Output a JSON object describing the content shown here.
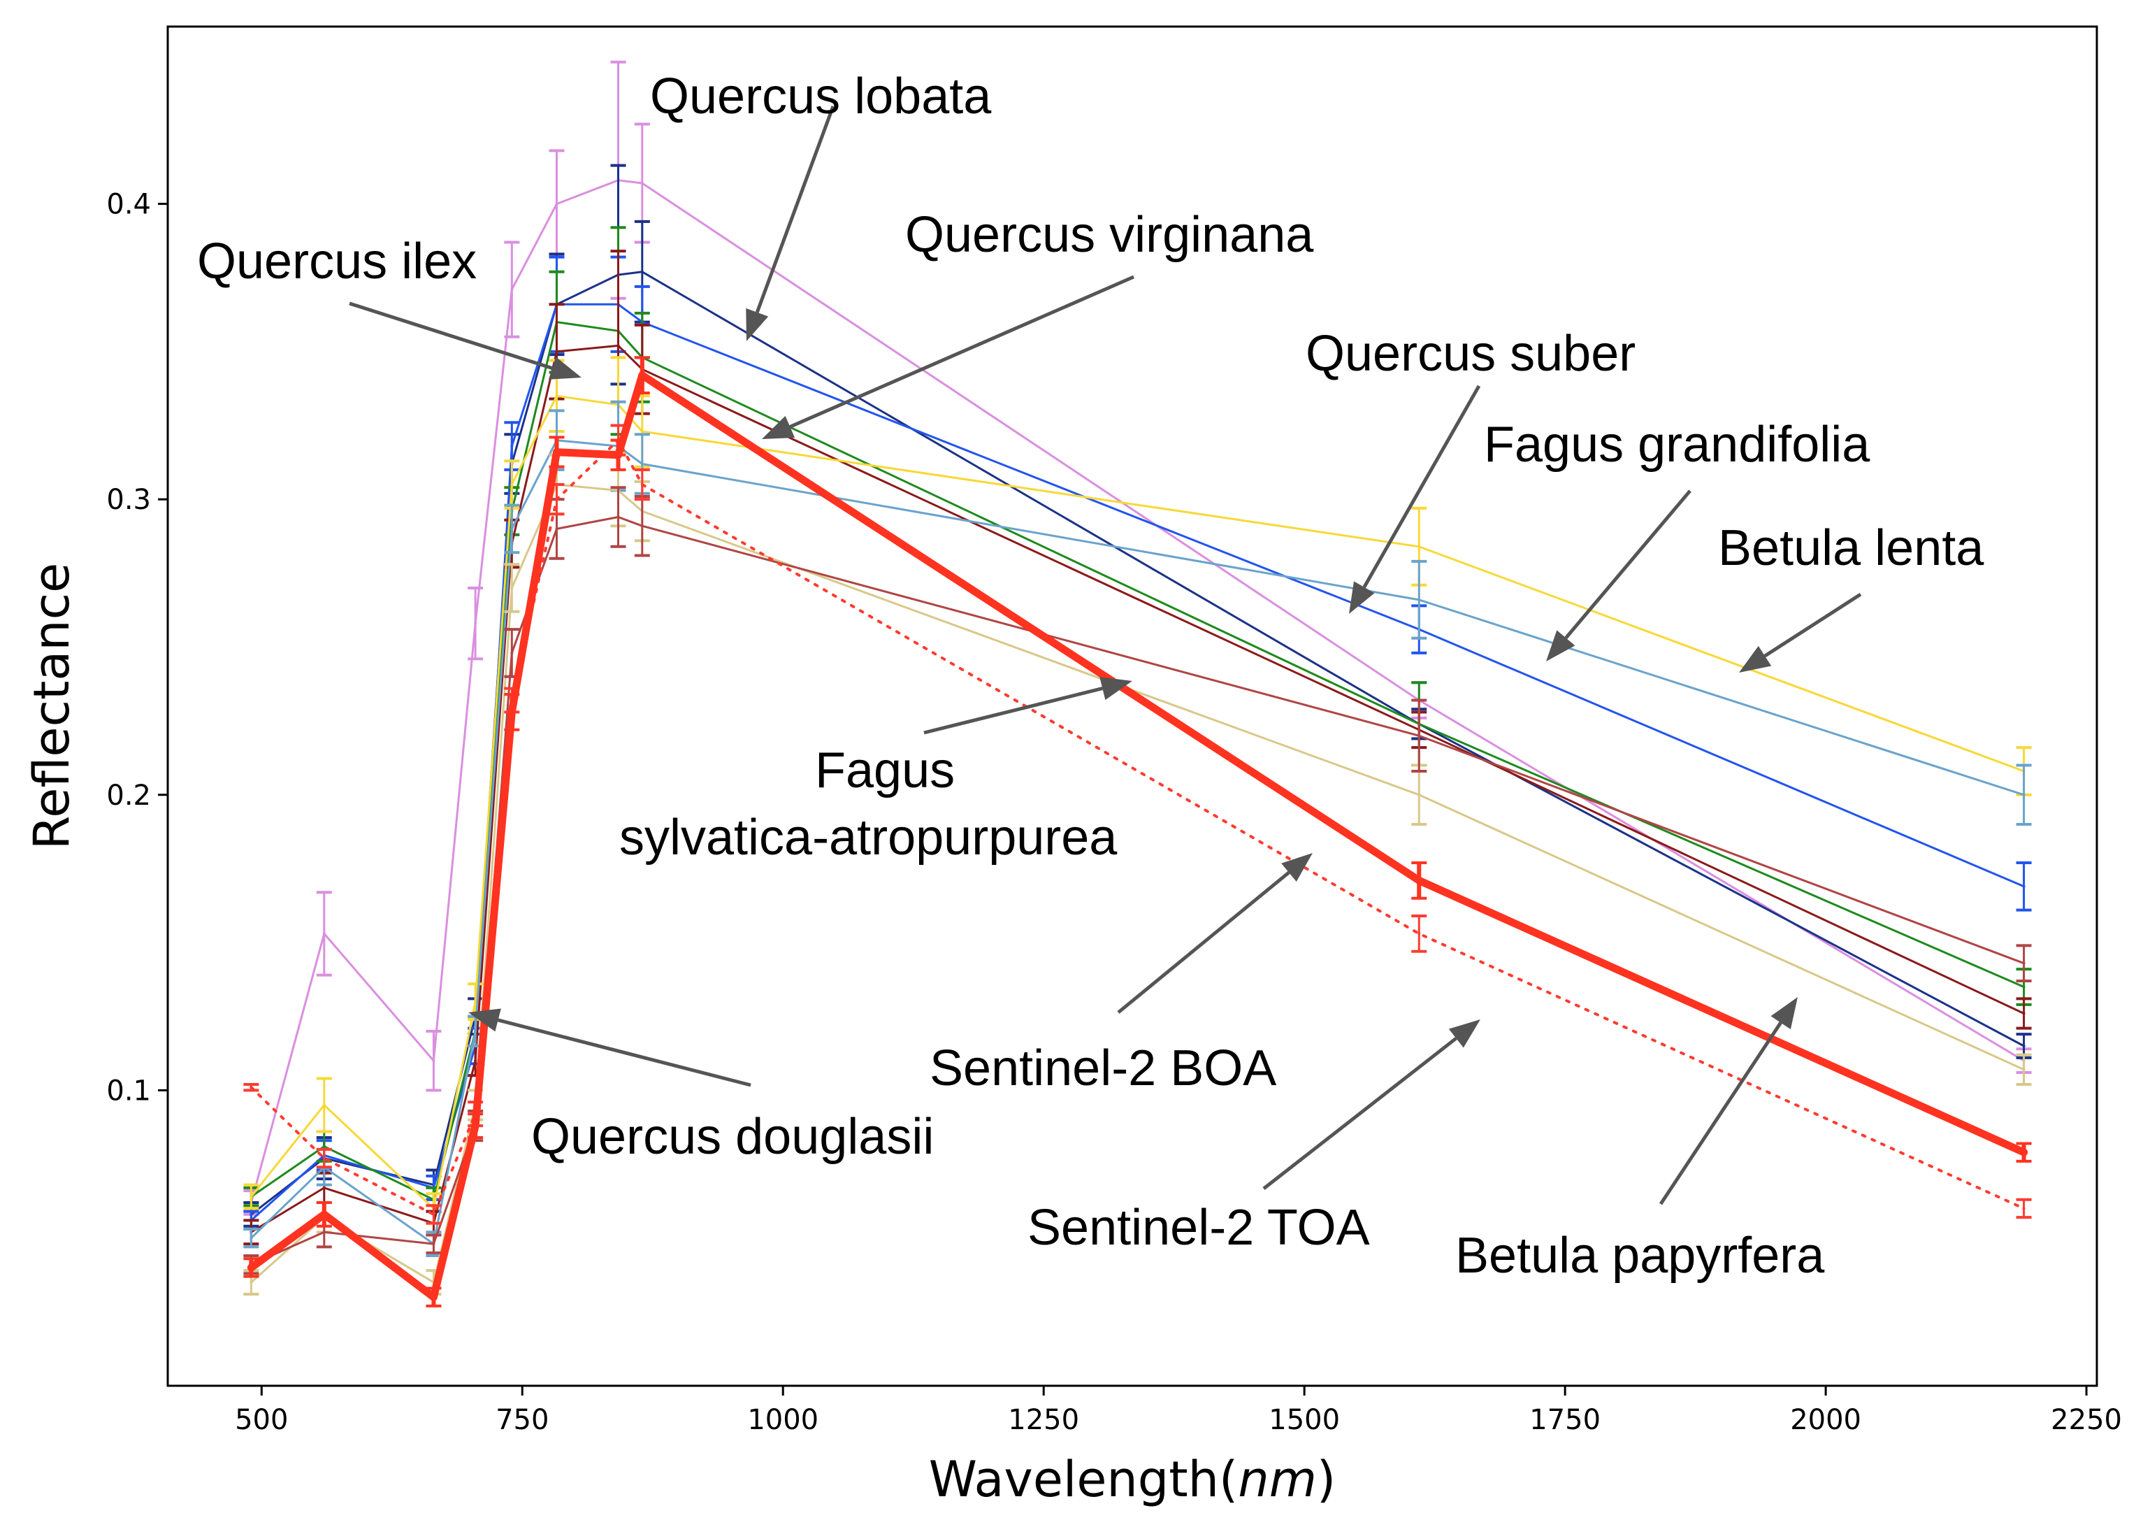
{
  "chart_data": {
    "type": "line",
    "xlabel": "Wavelength",
    "xlabel_unit": "nm",
    "ylabel": "Reflectance",
    "xlim": [
      410,
      2260
    ],
    "ylim": [
      0.0,
      0.46
    ],
    "grid": false,
    "legend": "none",
    "xticks": [
      500,
      750,
      1000,
      1250,
      1500,
      1750,
      2000,
      2250
    ],
    "yticks": [
      0.1,
      0.2,
      0.3,
      0.4
    ],
    "xticklabels": [
      "500",
      "750",
      "1000",
      "1250",
      "1500",
      "1750",
      "2000",
      "2250"
    ],
    "yticklabels": [
      "0.1",
      "0.2",
      "0.3",
      "0.4"
    ],
    "x": [
      490,
      560,
      665,
      705,
      740,
      783,
      842,
      865,
      1610,
      2190
    ],
    "series": [
      {
        "color": "#DA8FE0",
        "width": 3,
        "values": [
          0.062,
          0.153,
          0.11,
          0.258,
          0.371,
          0.4,
          0.408,
          0.407,
          0.232,
          0.11
        ],
        "errors": [
          0.004,
          0.014,
          0.01,
          0.012,
          0.016,
          0.018,
          0.04,
          0.02,
          0.006,
          0.004
        ]
      },
      {
        "color": "#1A3288",
        "width": 3,
        "values": [
          0.058,
          0.077,
          0.068,
          0.125,
          0.312,
          0.366,
          0.376,
          0.377,
          0.224,
          0.115
        ],
        "errors": [
          0.004,
          0.007,
          0.005,
          0.006,
          0.01,
          0.017,
          0.037,
          0.017,
          0.005,
          0.004
        ]
      },
      {
        "color": "#2255EE",
        "width": 3,
        "values": [
          0.056,
          0.078,
          0.067,
          0.115,
          0.318,
          0.366,
          0.366,
          0.36,
          0.256,
          0.169
        ],
        "errors": [
          0.003,
          0.005,
          0.004,
          0.006,
          0.008,
          0.016,
          0.016,
          0.012,
          0.008,
          0.008
        ]
      },
      {
        "color": "#1E8A1E",
        "width": 3,
        "values": [
          0.064,
          0.081,
          0.063,
          0.12,
          0.296,
          0.36,
          0.357,
          0.348,
          0.224,
          0.135
        ],
        "errors": [
          0.003,
          0.005,
          0.004,
          0.005,
          0.008,
          0.017,
          0.035,
          0.015,
          0.014,
          0.006
        ]
      },
      {
        "color": "#8B1A1A",
        "width": 3,
        "values": [
          0.052,
          0.067,
          0.055,
          0.11,
          0.285,
          0.35,
          0.352,
          0.344,
          0.222,
          0.126
        ],
        "errors": [
          0.004,
          0.005,
          0.004,
          0.005,
          0.008,
          0.016,
          0.032,
          0.015,
          0.006,
          0.005
        ]
      },
      {
        "color": "#F8D838",
        "width": 3,
        "values": [
          0.064,
          0.095,
          0.06,
          0.13,
          0.305,
          0.335,
          0.332,
          0.323,
          0.284,
          0.208
        ],
        "errors": [
          0.004,
          0.009,
          0.005,
          0.006,
          0.008,
          0.012,
          0.016,
          0.012,
          0.013,
          0.008
        ]
      },
      {
        "color": "#6AA3CC",
        "width": 3,
        "values": [
          0.05,
          0.074,
          0.048,
          0.12,
          0.29,
          0.32,
          0.318,
          0.312,
          0.266,
          0.2
        ],
        "errors": [
          0.003,
          0.006,
          0.004,
          0.005,
          0.008,
          0.01,
          0.015,
          0.01,
          0.013,
          0.01
        ]
      },
      {
        "color": "#D8C88A",
        "width": 3,
        "values": [
          0.035,
          0.057,
          0.035,
          0.095,
          0.27,
          0.305,
          0.303,
          0.296,
          0.2,
          0.107
        ],
        "errors": [
          0.004,
          0.005,
          0.004,
          0.005,
          0.008,
          0.01,
          0.012,
          0.01,
          0.01,
          0.005
        ]
      },
      {
        "color": "#B04545",
        "width": 3,
        "values": [
          0.041,
          0.052,
          0.048,
          0.088,
          0.248,
          0.29,
          0.294,
          0.291,
          0.22,
          0.143
        ],
        "errors": [
          0.003,
          0.005,
          0.003,
          0.005,
          0.008,
          0.01,
          0.01,
          0.01,
          0.012,
          0.006
        ]
      },
      {
        "color": "#FF3B30",
        "width": 4,
        "dashed": true,
        "values": [
          0.101,
          0.077,
          0.058,
          0.092,
          0.232,
          0.3,
          0.32,
          0.305,
          0.153,
          0.06
        ],
        "errors": [
          0.001,
          0.003,
          0.003,
          0.004,
          0.004,
          0.005,
          0.005,
          0.005,
          0.006,
          0.003
        ]
      },
      {
        "color": "#FF3320",
        "width": 11,
        "values": [
          0.04,
          0.058,
          0.03,
          0.088,
          0.228,
          0.316,
          0.315,
          0.342,
          0.171,
          0.079
        ],
        "errors": [
          0.003,
          0.004,
          0.003,
          0.004,
          0.006,
          0.005,
          0.005,
          0.006,
          0.006,
          0.003
        ]
      }
    ],
    "annotations": [
      {
        "text": "Quercus lobata"
      },
      {
        "text": "Quercus virginana"
      },
      {
        "text": "Quercus ilex"
      },
      {
        "text": "Quercus suber"
      },
      {
        "text": "Fagus grandifolia"
      },
      {
        "text": "Betula lenta"
      },
      {
        "text": "Fagus"
      },
      {
        "text": "sylvatica-atropurpurea"
      },
      {
        "text": "Quercus douglasii"
      },
      {
        "text": "Sentinel-2 BOA"
      },
      {
        "text": "Sentinel-2 TOA"
      },
      {
        "text": "Betula papyrfera"
      }
    ]
  }
}
